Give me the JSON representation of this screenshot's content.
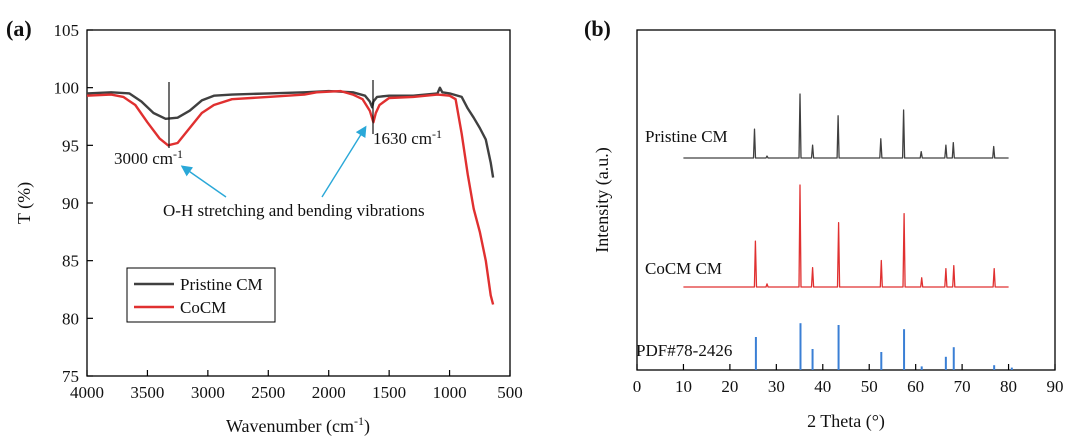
{
  "chart_data": [
    {
      "type": "line",
      "panel_label": "(a)",
      "xlabel": "Wavenumber (cm",
      "xlabel_sup": "-1",
      "xlabel_suffix": ")",
      "ylabel": "T (%)",
      "xlim": [
        4000,
        500
      ],
      "ylim": [
        75,
        105
      ],
      "xticks": [
        4000,
        3500,
        3000,
        2500,
        2000,
        1500,
        1000,
        500
      ],
      "yticks": [
        75,
        80,
        85,
        90,
        95,
        100,
        105
      ],
      "legend_position": "bottom-left",
      "series": [
        {
          "name": "Pristine CM",
          "color": "#404040",
          "points": [
            [
              4000,
              99.5
            ],
            [
              3800,
              99.6
            ],
            [
              3650,
              99.5
            ],
            [
              3550,
              98.8
            ],
            [
              3450,
              97.8
            ],
            [
              3350,
              97.3
            ],
            [
              3250,
              97.4
            ],
            [
              3150,
              98.0
            ],
            [
              3050,
              98.9
            ],
            [
              2950,
              99.3
            ],
            [
              2800,
              99.4
            ],
            [
              2500,
              99.5
            ],
            [
              2200,
              99.6
            ],
            [
              2000,
              99.7
            ],
            [
              1800,
              99.6
            ],
            [
              1700,
              99.3
            ],
            [
              1660,
              98.8
            ],
            [
              1640,
              98.3
            ],
            [
              1630,
              98.8
            ],
            [
              1600,
              99.2
            ],
            [
              1500,
              99.3
            ],
            [
              1300,
              99.3
            ],
            [
              1100,
              99.5
            ],
            [
              1080,
              100.0
            ],
            [
              1060,
              99.6
            ],
            [
              1000,
              99.5
            ],
            [
              900,
              99.2
            ],
            [
              850,
              98.2
            ],
            [
              800,
              97.4
            ],
            [
              750,
              96.5
            ],
            [
              700,
              95.5
            ],
            [
              660,
              93.5
            ],
            [
              640,
              92.2
            ]
          ]
        },
        {
          "name": "CoCM",
          "color": "#e03030",
          "points": [
            [
              4000,
              99.3
            ],
            [
              3800,
              99.4
            ],
            [
              3700,
              99.2
            ],
            [
              3600,
              98.5
            ],
            [
              3500,
              97.0
            ],
            [
              3400,
              95.6
            ],
            [
              3330,
              95.0
            ],
            [
              3250,
              95.2
            ],
            [
              3150,
              96.5
            ],
            [
              3050,
              97.8
            ],
            [
              2950,
              98.5
            ],
            [
              2800,
              99.0
            ],
            [
              2500,
              99.2
            ],
            [
              2200,
              99.4
            ],
            [
              2100,
              99.6
            ],
            [
              1900,
              99.7
            ],
            [
              1800,
              99.4
            ],
            [
              1720,
              99.0
            ],
            [
              1660,
              98.0
            ],
            [
              1630,
              97.0
            ],
            [
              1610,
              97.8
            ],
            [
              1580,
              98.5
            ],
            [
              1500,
              99.1
            ],
            [
              1300,
              99.2
            ],
            [
              1100,
              99.4
            ],
            [
              1000,
              99.3
            ],
            [
              950,
              99.0
            ],
            [
              900,
              96.0
            ],
            [
              850,
              92.5
            ],
            [
              800,
              89.5
            ],
            [
              750,
              87.5
            ],
            [
              700,
              85.0
            ],
            [
              660,
              82.0
            ],
            [
              640,
              81.2
            ]
          ]
        }
      ],
      "annotations": [
        {
          "text": "3000 cm",
          "sup": "-1",
          "x": 3000,
          "y": 95
        },
        {
          "text": "1630 cm",
          "sup": "-1",
          "x": 1630,
          "y": 97
        },
        {
          "text": "O-H stretching and bending vibrations"
        }
      ]
    },
    {
      "type": "line",
      "panel_label": "(b)",
      "xlabel": "2 Theta (°)",
      "ylabel": "Intensity (a.u.)",
      "xlim": [
        0,
        90
      ],
      "xticks": [
        0,
        10,
        20,
        30,
        40,
        50,
        60,
        70,
        80,
        90
      ],
      "series": [
        {
          "name": "Pristine CM",
          "color": "#404040",
          "peaks": [
            [
              25.3,
              0.45
            ],
            [
              28.0,
              0.03
            ],
            [
              35.1,
              1.0
            ],
            [
              37.8,
              0.2
            ],
            [
              43.3,
              0.66
            ],
            [
              52.5,
              0.3
            ],
            [
              57.4,
              0.75
            ],
            [
              61.2,
              0.1
            ],
            [
              66.5,
              0.2
            ],
            [
              68.1,
              0.24
            ],
            [
              76.8,
              0.18
            ]
          ]
        },
        {
          "name": "CoCM CM",
          "color": "#e03030",
          "peaks": [
            [
              25.5,
              0.45
            ],
            [
              28.0,
              0.03
            ],
            [
              35.1,
              1.0
            ],
            [
              37.8,
              0.19
            ],
            [
              43.4,
              0.63
            ],
            [
              52.6,
              0.26
            ],
            [
              57.5,
              0.72
            ],
            [
              61.3,
              0.09
            ],
            [
              66.5,
              0.18
            ],
            [
              68.2,
              0.21
            ],
            [
              76.9,
              0.18
            ]
          ]
        },
        {
          "name": "PDF#78-2426",
          "color": "#3a7fd5",
          "sticks": [
            [
              25.6,
              0.55
            ],
            [
              35.2,
              0.78
            ],
            [
              37.8,
              0.35
            ],
            [
              43.4,
              0.75
            ],
            [
              52.6,
              0.3
            ],
            [
              57.5,
              0.68
            ],
            [
              61.3,
              0.06
            ],
            [
              66.5,
              0.22
            ],
            [
              68.2,
              0.38
            ],
            [
              76.9,
              0.08
            ],
            [
              80.7,
              0.04
            ]
          ]
        }
      ]
    }
  ]
}
